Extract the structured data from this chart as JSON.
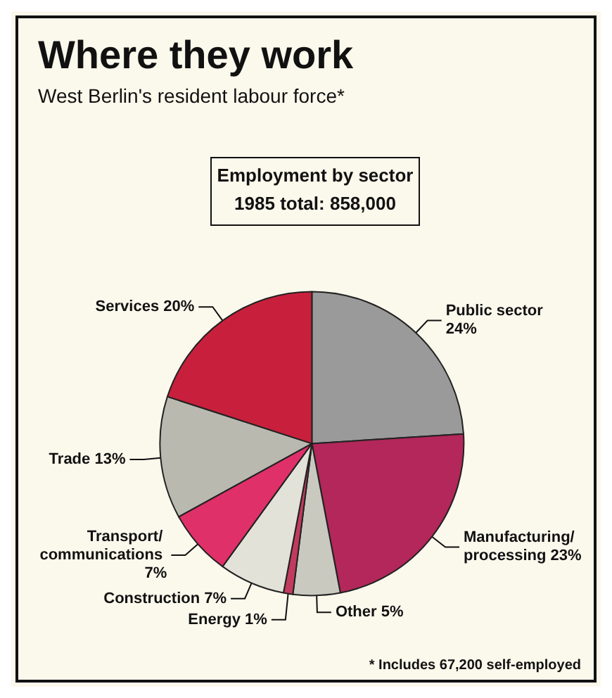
{
  "chart_data": {
    "type": "pie",
    "title": "Where they work",
    "subtitle": "West Berlin's resident labour force*",
    "annotations": [
      "Employment by sector",
      "1985 total: 858,000",
      "* Includes 67,200 self-employed"
    ],
    "categories": [
      "Public sector",
      "Manufacturing/ processing",
      "Other",
      "Energy",
      "Construction",
      "Transport/ communications",
      "Trade",
      "Services"
    ],
    "values": [
      24,
      23,
      5,
      1,
      7,
      7,
      13,
      20
    ],
    "value_labels": [
      "24%",
      "23%",
      "5%",
      "1%",
      "7%",
      "7%",
      "13%",
      "20%"
    ],
    "colors": [
      "#9a9a9a",
      "#b3275a",
      "#c9c9bf",
      "#c23a5e",
      "#e2e2d8",
      "#e0306a",
      "#b9b9b0",
      "#c8203c"
    ],
    "legend": false
  }
}
